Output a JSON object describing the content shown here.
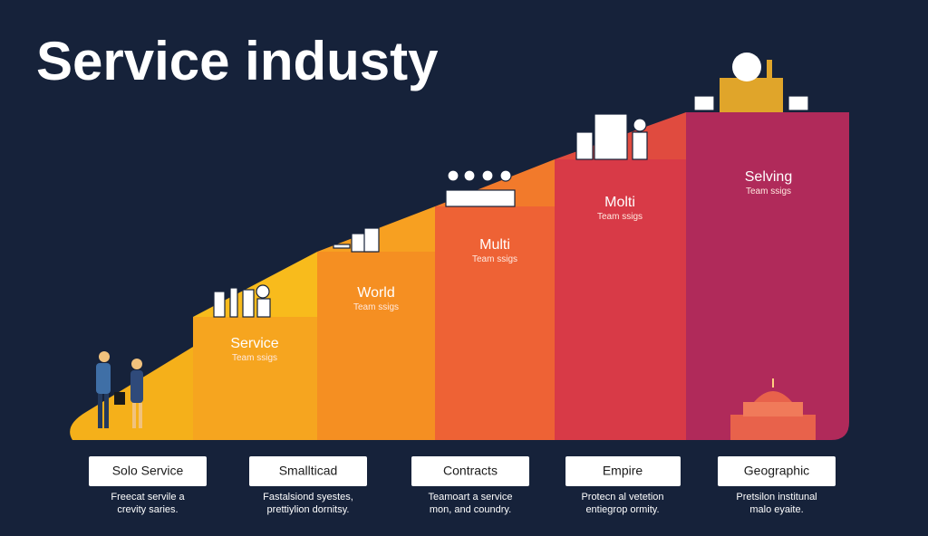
{
  "title": "Service industy",
  "steps": [
    {
      "name": "Service",
      "subtitle": "Team ssigs"
    },
    {
      "name": "World",
      "subtitle": "Team ssigs"
    },
    {
      "name": "Multi",
      "subtitle": "Team ssigs"
    },
    {
      "name": "Molti",
      "subtitle": "Team ssigs"
    },
    {
      "name": "Selving",
      "subtitle": "Team ssigs"
    }
  ],
  "stages": [
    {
      "label": "Solo Service",
      "description": [
        "Freecat servile a",
        "crevity saries."
      ]
    },
    {
      "label": "Smallticad",
      "description": [
        "Fastalsiond syestes,",
        "prettiylion dornitsy."
      ]
    },
    {
      "label": "Contracts",
      "description": [
        "Teamoart a service",
        "mon, and coundry."
      ]
    },
    {
      "label": "Empire",
      "description": [
        "Protecn al vetetion",
        "entiegrop ormity."
      ]
    },
    {
      "label": "Geographic",
      "description": [
        "Pretsilon institunal",
        "malo eyaite."
      ]
    }
  ]
}
